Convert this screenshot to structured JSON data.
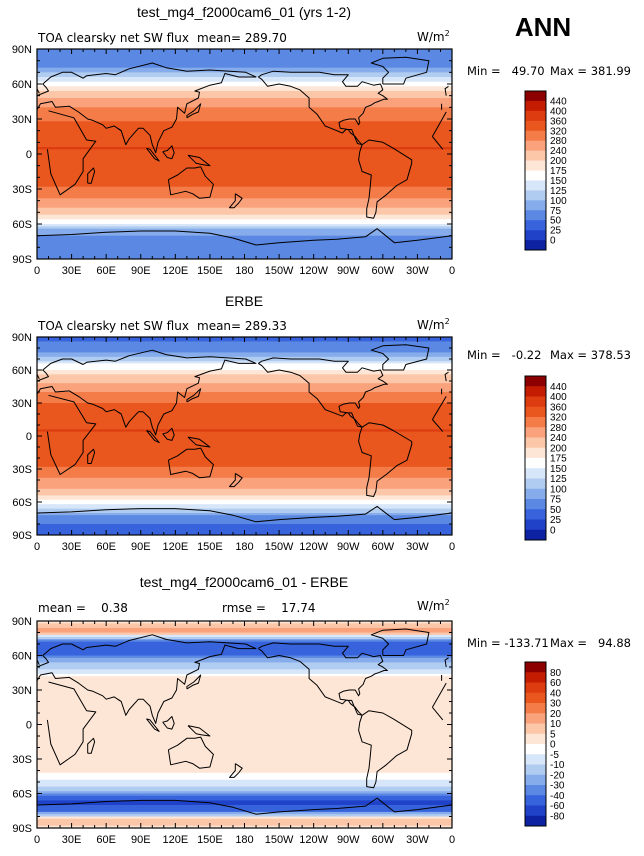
{
  "season": "ANN",
  "chart_data": [
    {
      "type": "heatmap",
      "title": "test_mg4_f2000cam6_01 (yrs 1-2)",
      "variable": "TOA clearsky net SW flux",
      "mean_text": "mean= 289.70",
      "units": "W/m2",
      "min_text": "Min =   49.70",
      "max_text": "Max = 381.99",
      "x_ticks": [
        "0",
        "30E",
        "60E",
        "90E",
        "120E",
        "150E",
        "180",
        "150W",
        "120W",
        "90W",
        "60W",
        "30W",
        "0"
      ],
      "y_ticks": [
        "90N",
        "60N",
        "30N",
        "0",
        "30S",
        "60S",
        "90S"
      ],
      "xlim": [
        0,
        360
      ],
      "ylim": [
        -90,
        90
      ],
      "colorbar_labels": [
        "440",
        "400",
        "360",
        "320",
        "280",
        "240",
        "200",
        "175",
        "150",
        "125",
        "100",
        "75",
        "50",
        "25",
        "0"
      ],
      "colorbar_colors": [
        "#8c0000",
        "#c41c00",
        "#dc3c0f",
        "#e9561e",
        "#f47c48",
        "#f9a27c",
        "#fcc6a8",
        "#fde6d6",
        "#ffffff",
        "#d7e6f8",
        "#b0ccf0",
        "#86aceb",
        "#5a88e3",
        "#3763dc",
        "#1f42c9",
        "#0d22a3"
      ],
      "zonal_profile": [
        {
          "lat": 90,
          "value": 60
        },
        {
          "lat": 75,
          "value": 70
        },
        {
          "lat": 65,
          "value": 130
        },
        {
          "lat": 55,
          "value": 190
        },
        {
          "lat": 45,
          "value": 255
        },
        {
          "lat": 35,
          "value": 300
        },
        {
          "lat": 20,
          "value": 345
        },
        {
          "lat": 5,
          "value": 360
        },
        {
          "lat": -10,
          "value": 358
        },
        {
          "lat": -25,
          "value": 335
        },
        {
          "lat": -40,
          "value": 270
        },
        {
          "lat": -50,
          "value": 215
        },
        {
          "lat": -58,
          "value": 160
        },
        {
          "lat": -65,
          "value": 90
        },
        {
          "lat": -75,
          "value": 55
        },
        {
          "lat": -90,
          "value": 50
        }
      ]
    },
    {
      "type": "heatmap",
      "title": "ERBE",
      "variable": "TOA clearsky net SW flux",
      "mean_text": "mean= 289.33",
      "units": "W/m2",
      "min_text": "Min =   -0.22",
      "max_text": "Max = 378.53",
      "x_ticks": [
        "0",
        "30E",
        "60E",
        "90E",
        "120E",
        "150E",
        "180",
        "150W",
        "120W",
        "90W",
        "60W",
        "30W",
        "0"
      ],
      "y_ticks": [
        "90N",
        "60N",
        "30N",
        "0",
        "30S",
        "60S",
        "90S"
      ],
      "xlim": [
        0,
        360
      ],
      "ylim": [
        -90,
        90
      ],
      "colorbar_labels": [
        "440",
        "400",
        "360",
        "320",
        "280",
        "240",
        "200",
        "175",
        "150",
        "125",
        "100",
        "75",
        "50",
        "25",
        "0"
      ],
      "colorbar_colors": [
        "#8c0000",
        "#c41c00",
        "#dc3c0f",
        "#e9561e",
        "#f47c48",
        "#f9a27c",
        "#fcc6a8",
        "#fde6d6",
        "#ffffff",
        "#d7e6f8",
        "#b0ccf0",
        "#86aceb",
        "#5a88e3",
        "#3763dc",
        "#1f42c9",
        "#0d22a3"
      ],
      "zonal_profile": [
        {
          "lat": 90,
          "value": 40
        },
        {
          "lat": 75,
          "value": 80
        },
        {
          "lat": 65,
          "value": 150
        },
        {
          "lat": 55,
          "value": 205
        },
        {
          "lat": 45,
          "value": 260
        },
        {
          "lat": 35,
          "value": 305
        },
        {
          "lat": 20,
          "value": 345
        },
        {
          "lat": 5,
          "value": 360
        },
        {
          "lat": -10,
          "value": 358
        },
        {
          "lat": -25,
          "value": 335
        },
        {
          "lat": -40,
          "value": 275
        },
        {
          "lat": -50,
          "value": 225
        },
        {
          "lat": -58,
          "value": 175
        },
        {
          "lat": -65,
          "value": 130
        },
        {
          "lat": -75,
          "value": 60
        },
        {
          "lat": -90,
          "value": 30
        }
      ]
    },
    {
      "type": "heatmap",
      "title": "test_mg4_f2000cam6_01 - ERBE",
      "mean_text": "mean =    0.38",
      "rmse_text": "rmse =    17.74",
      "units": "W/m2",
      "min_text": "Min = -133.71",
      "max_text": "Max =   94.88",
      "x_ticks": [
        "0",
        "30E",
        "60E",
        "90E",
        "120E",
        "150E",
        "180",
        "150W",
        "120W",
        "90W",
        "60W",
        "30W",
        "0"
      ],
      "y_ticks": [
        "90N",
        "60N",
        "30N",
        "0",
        "30S",
        "60S",
        "90S"
      ],
      "xlim": [
        0,
        360
      ],
      "ylim": [
        -90,
        90
      ],
      "colorbar_labels": [
        "80",
        "60",
        "40",
        "30",
        "20",
        "10",
        "5",
        "0",
        "-5",
        "-10",
        "-20",
        "-30",
        "-40",
        "-60",
        "-80"
      ],
      "colorbar_colors": [
        "#8c0000",
        "#c41c00",
        "#dc3c0f",
        "#e9561e",
        "#f47c48",
        "#f9a27c",
        "#fcc6a8",
        "#fde6d6",
        "#ffffff",
        "#d7e6f8",
        "#b0ccf0",
        "#86aceb",
        "#5a88e3",
        "#3763dc",
        "#1f42c9",
        "#0d22a3"
      ],
      "zonal_profile": [
        {
          "lat": 90,
          "value": 2
        },
        {
          "lat": 80,
          "value": 15
        },
        {
          "lat": 72,
          "value": -40
        },
        {
          "lat": 62,
          "value": -45
        },
        {
          "lat": 52,
          "value": -15
        },
        {
          "lat": 40,
          "value": 2
        },
        {
          "lat": 20,
          "value": 2
        },
        {
          "lat": 0,
          "value": 2
        },
        {
          "lat": -20,
          "value": 2
        },
        {
          "lat": -40,
          "value": 2
        },
        {
          "lat": -52,
          "value": -8
        },
        {
          "lat": -58,
          "value": -20
        },
        {
          "lat": -63,
          "value": -45
        },
        {
          "lat": -68,
          "value": -65
        },
        {
          "lat": -75,
          "value": -45
        },
        {
          "lat": -82,
          "value": 10
        },
        {
          "lat": -90,
          "value": 2
        }
      ]
    }
  ]
}
